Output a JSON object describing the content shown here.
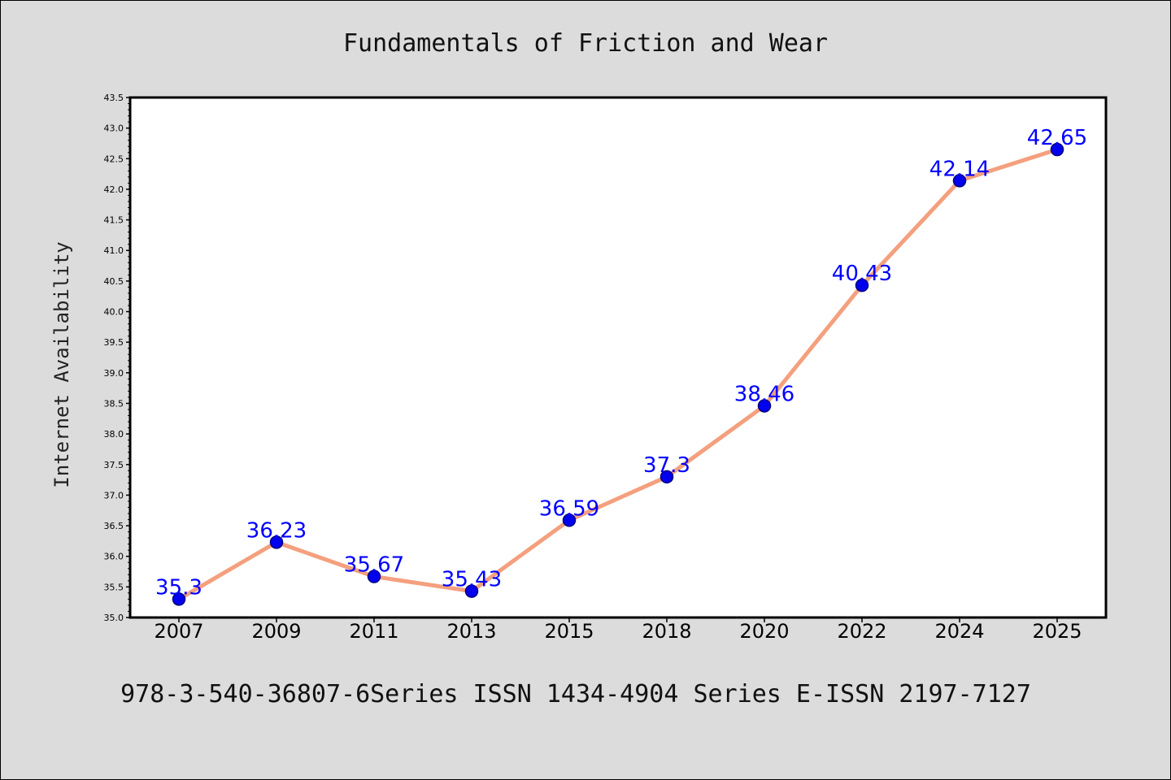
{
  "colors": {
    "background": "#dcdcdc",
    "plot_area": "#ffffff",
    "line": "#f4a07e",
    "marker": "#0000ee",
    "marker_edge": "#000080",
    "data_label": "#0000ff"
  },
  "footer": {
    "text": "978-3-540-36807-6Series ISSN 1434-4904 Series E-ISSN 2197-7127"
  },
  "chart_data": {
    "type": "line",
    "title": "Fundamentals of Friction and Wear",
    "xlabel": "",
    "ylabel": "Internet Availability",
    "categories": [
      "2007",
      "2009",
      "2011",
      "2013",
      "2015",
      "2018",
      "2020",
      "2022",
      "2024",
      "2025"
    ],
    "series": [
      {
        "values": [
          35.3,
          36.23,
          35.67,
          35.43,
          36.59,
          37.3,
          38.46,
          40.43,
          42.14,
          42.65
        ],
        "data_labels": [
          "35.3",
          "36.23",
          "35.67",
          "35.43",
          "36.59",
          "37.3",
          "38.46",
          "40.43",
          "42.14",
          "42.65"
        ]
      }
    ],
    "ylim": [
      35.0,
      43.5
    ],
    "yticks": [
      "35.0",
      "35.5",
      "36.0",
      "36.5",
      "37.0",
      "37.5",
      "38.0",
      "38.5",
      "39.0",
      "39.5",
      "40.0",
      "40.5",
      "41.0",
      "41.5",
      "42.0",
      "42.5",
      "43.0",
      "43.5"
    ],
    "grid": false,
    "legend": "none",
    "marker": "circle"
  }
}
